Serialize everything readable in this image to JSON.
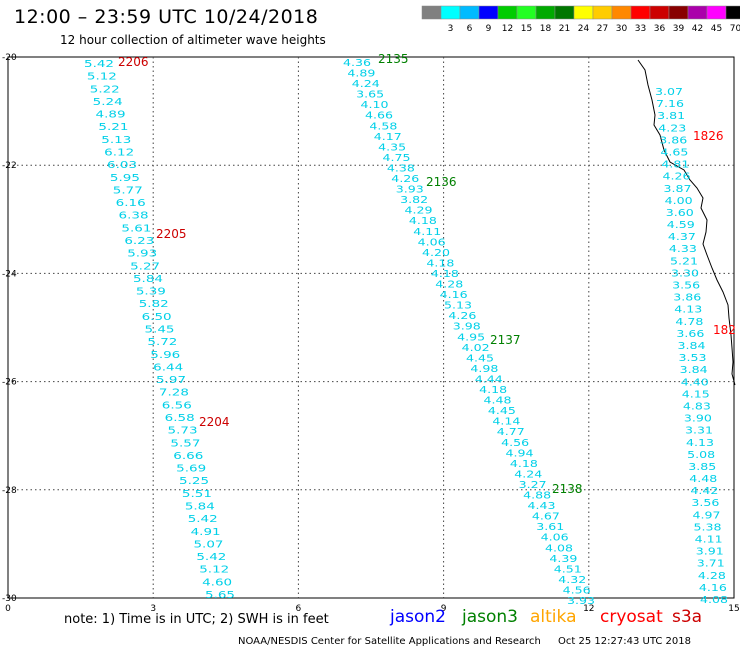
{
  "title": "12:00 – 23:59 UTC 10/24/2018",
  "subtitle": "12 hour collection of altimeter wave heights",
  "legend": {
    "unit": "(ft)",
    "bins": [
      {
        "label": "",
        "color": "#808080"
      },
      {
        "label": "3",
        "color": "#00ffff"
      },
      {
        "label": "6",
        "color": "#00bbff"
      },
      {
        "label": "9",
        "color": "#0000ff"
      },
      {
        "label": "12",
        "color": "#00cc00"
      },
      {
        "label": "15",
        "color": "#22ff22"
      },
      {
        "label": "18",
        "color": "#00aa00"
      },
      {
        "label": "21",
        "color": "#007700"
      },
      {
        "label": "24",
        "color": "#ffff00"
      },
      {
        "label": "27",
        "color": "#ffcc00"
      },
      {
        "label": "30",
        "color": "#ff8800"
      },
      {
        "label": "33",
        "color": "#ff0000"
      },
      {
        "label": "36",
        "color": "#cc0000"
      },
      {
        "label": "39",
        "color": "#880000"
      },
      {
        "label": "42",
        "color": "#aa00aa"
      },
      {
        "label": "45",
        "color": "#ff00ff"
      },
      {
        "label": "70",
        "color": "#000000"
      }
    ]
  },
  "axes": {
    "x_ticks": [
      "0",
      "3",
      "6",
      "9",
      "12",
      "15"
    ],
    "y_ticks": [
      "-20",
      "-22",
      "-24",
      "-26",
      "-28",
      "-30"
    ],
    "x_range": [
      0,
      15
    ],
    "y_range": [
      -20,
      -30
    ]
  },
  "colors": {
    "jason2": "#0000ff",
    "jason3": "#008000",
    "altika": "#ffa500",
    "cryosat": "#ff0000",
    "s3a": "#cc0000",
    "swh": "#00d0e8",
    "coast": "#000000"
  },
  "tracks": [
    {
      "id": "t2204",
      "values": [
        "5.42",
        "5.12",
        "5.22",
        "5.24",
        "4.89",
        "5.21",
        "5.13",
        "6.12",
        "6.03",
        "5.95",
        "5.77",
        "6.16",
        "6.38",
        "5.61",
        "6.23",
        "5.93",
        "5.27",
        "5.84",
        "5.39",
        "5.82",
        "6.50",
        "5.45",
        "5.72",
        "5.96",
        "6.44",
        "5.97",
        "7.28",
        "6.56",
        "6.58",
        "5.73",
        "5.57",
        "6.66",
        "5.69",
        "5.25",
        "5.51",
        "5.84",
        "5.42",
        "4.91",
        "5.07",
        "5.42",
        "5.12",
        "4.60",
        "5.65"
      ]
    },
    {
      "id": "t2135",
      "values": [
        "4.36",
        "4.89",
        "4.24",
        "3.65",
        "4.10",
        "4.66",
        "4.58",
        "4.17",
        "4.35",
        "4.75",
        "4.38",
        "4.26",
        "3.93",
        "3.82",
        "4.29",
        "4.18",
        "4.11",
        "4.06",
        "4.20",
        "4.18",
        "4.18",
        "4.28",
        "4.16",
        "5.13",
        "4.26",
        "3.98",
        "4.95",
        "4.02",
        "4.45",
        "4.98",
        "4.44",
        "4.18",
        "4.48",
        "4.45",
        "4.14",
        "4.77",
        "4.56",
        "4.94",
        "4.18",
        "4.24",
        "3.27",
        "4.88",
        "4.43",
        "4.67",
        "3.61",
        "4.06",
        "4.08",
        "4.39",
        "4.51",
        "4.32",
        "4.56",
        "3.93"
      ]
    },
    {
      "id": "t1826",
      "values": [
        "3.07",
        "7.16",
        "3.81",
        "4.23",
        "3.86",
        "4.65",
        "4.81",
        "4.26",
        "3.87",
        "4.00",
        "3.60",
        "4.59",
        "4.37",
        "4.33",
        "5.21",
        "3.30",
        "3.56",
        "3.86",
        "4.13",
        "4.78",
        "3.66",
        "3.84",
        "3.53",
        "3.84",
        "4.40",
        "4.15",
        "4.83",
        "3.90",
        "3.31",
        "4.13",
        "5.08",
        "3.85",
        "4.48",
        "4.42",
        "3.56",
        "4.97",
        "5.38",
        "4.11",
        "3.91",
        "3.71",
        "4.28",
        "4.16",
        "4.08"
      ]
    }
  ],
  "track_labels": [
    {
      "text": "2206",
      "sat": "s3a"
    },
    {
      "text": "2205",
      "sat": "s3a"
    },
    {
      "text": "2204",
      "sat": "s3a"
    },
    {
      "text": "2135",
      "sat": "jason3"
    },
    {
      "text": "2136",
      "sat": "jason3"
    },
    {
      "text": "2137",
      "sat": "jason3"
    },
    {
      "text": "2138",
      "sat": "jason3"
    },
    {
      "text": "1826",
      "sat": "cryosat"
    },
    {
      "text": "182",
      "sat": "cryosat"
    }
  ],
  "note": "note:  1) Time is in UTC;  2) SWH is in feet",
  "satellites": {
    "jason2": "jason2",
    "jason3": "jason3",
    "altika": "altika",
    "cryosat": "cryosat",
    "s3a": "s3a"
  },
  "footer": {
    "center": "NOAA/NESDIS Center for Satellite Applications and Research",
    "timestamp": "Oct 25 12:27:43 UTC 2018"
  }
}
